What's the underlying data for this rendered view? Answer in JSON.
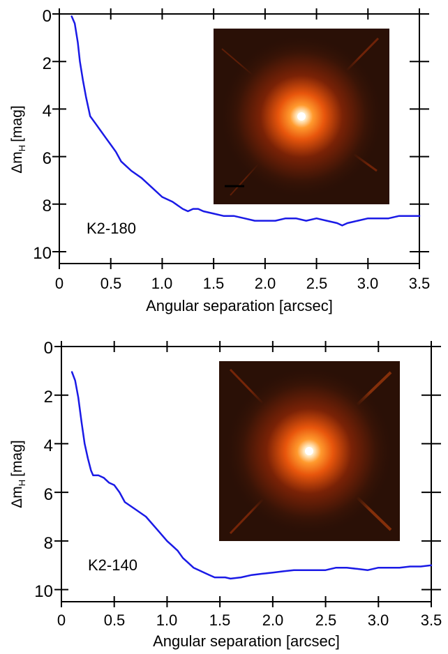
{
  "chart_data": [
    {
      "type": "line",
      "target_label": "K2-180",
      "xlabel": "Angular separation [arcsec]",
      "ylabel": "Δm",
      "ylabel_sub": "H",
      "ylabel_unit": "[mag]",
      "xlim": [
        0,
        3.5
      ],
      "ylim": [
        0,
        10.5
      ],
      "y_inverted": true,
      "x_ticks": [
        "0",
        "0.5",
        "1.0",
        "1.5",
        "2.0",
        "2.5",
        "3.0",
        "3.5"
      ],
      "y_ticks": [
        "0",
        "2",
        "4",
        "6",
        "8",
        "10"
      ],
      "grid": false,
      "line_color": "#1a1ae6",
      "inset_image": "PSF image of star with diffraction spikes (orange glow on dark background)",
      "series": [
        {
          "x": [
            0.12,
            0.15,
            0.18,
            0.2,
            0.23,
            0.26,
            0.3,
            0.35,
            0.4,
            0.45,
            0.5,
            0.55,
            0.6,
            0.65,
            0.7,
            0.8,
            0.9,
            1.0,
            1.1,
            1.2,
            1.25,
            1.3,
            1.35,
            1.4,
            1.5,
            1.6,
            1.7,
            1.8,
            1.9,
            2.0,
            2.1,
            2.2,
            2.3,
            2.4,
            2.5,
            2.6,
            2.7,
            2.75,
            2.8,
            2.9,
            3.0,
            3.1,
            3.2,
            3.3,
            3.4,
            3.5
          ],
          "y": [
            0.1,
            0.4,
            1.2,
            2.0,
            2.8,
            3.5,
            4.3,
            4.6,
            4.9,
            5.2,
            5.5,
            5.8,
            6.2,
            6.4,
            6.6,
            6.9,
            7.3,
            7.7,
            7.9,
            8.2,
            8.3,
            8.2,
            8.2,
            8.3,
            8.4,
            8.5,
            8.5,
            8.6,
            8.7,
            8.7,
            8.7,
            8.6,
            8.6,
            8.7,
            8.6,
            8.7,
            8.8,
            8.9,
            8.8,
            8.7,
            8.6,
            8.6,
            8.6,
            8.5,
            8.5,
            8.5
          ]
        }
      ]
    },
    {
      "type": "line",
      "target_label": "K2-140",
      "xlabel": "Angular separation [arcsec]",
      "ylabel": "Δm",
      "ylabel_sub": "H",
      "ylabel_unit": "[mag]",
      "xlim": [
        0,
        3.5
      ],
      "ylim": [
        0,
        10.5
      ],
      "y_inverted": true,
      "x_ticks": [
        "0",
        "0.5",
        "1.0",
        "1.5",
        "2.0",
        "2.5",
        "3.0",
        "3.5"
      ],
      "y_ticks": [
        "0",
        "2",
        "4",
        "6",
        "8",
        "10"
      ],
      "grid": false,
      "line_color": "#1a1ae6",
      "inset_image": "PSF image of star with diffraction spikes (orange glow on dark background)",
      "series": [
        {
          "x": [
            0.1,
            0.13,
            0.16,
            0.19,
            0.22,
            0.25,
            0.28,
            0.3,
            0.35,
            0.4,
            0.45,
            0.5,
            0.55,
            0.6,
            0.7,
            0.8,
            0.9,
            1.0,
            1.05,
            1.1,
            1.15,
            1.2,
            1.25,
            1.3,
            1.35,
            1.4,
            1.45,
            1.5,
            1.55,
            1.6,
            1.7,
            1.8,
            1.9,
            2.0,
            2.1,
            2.2,
            2.3,
            2.4,
            2.5,
            2.6,
            2.7,
            2.8,
            2.9,
            3.0,
            3.1,
            3.2,
            3.3,
            3.4,
            3.5
          ],
          "y": [
            1.05,
            1.4,
            2.1,
            3.1,
            4.0,
            4.6,
            5.1,
            5.3,
            5.3,
            5.4,
            5.6,
            5.7,
            6.0,
            6.4,
            6.7,
            7.0,
            7.5,
            8.0,
            8.2,
            8.4,
            8.7,
            8.9,
            9.1,
            9.2,
            9.3,
            9.4,
            9.5,
            9.5,
            9.5,
            9.55,
            9.5,
            9.4,
            9.35,
            9.3,
            9.25,
            9.2,
            9.2,
            9.2,
            9.2,
            9.1,
            9.1,
            9.15,
            9.2,
            9.1,
            9.1,
            9.1,
            9.05,
            9.05,
            9.0
          ]
        }
      ]
    }
  ]
}
